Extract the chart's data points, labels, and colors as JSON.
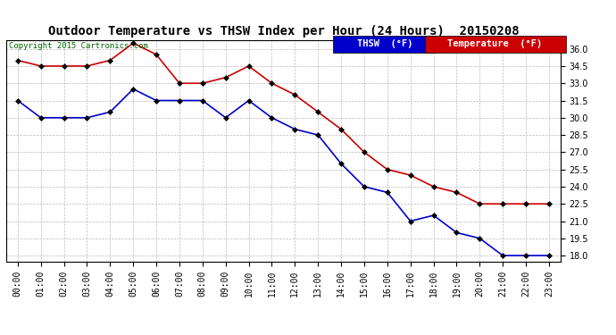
{
  "title": "Outdoor Temperature vs THSW Index per Hour (24 Hours)  20150208",
  "copyright": "Copyright 2015 Cartronics.com",
  "hours": [
    "00:00",
    "01:00",
    "02:00",
    "03:00",
    "04:00",
    "05:00",
    "06:00",
    "07:00",
    "08:00",
    "09:00",
    "10:00",
    "11:00",
    "12:00",
    "13:00",
    "14:00",
    "15:00",
    "16:00",
    "17:00",
    "18:00",
    "19:00",
    "20:00",
    "21:00",
    "22:00",
    "23:00"
  ],
  "temperature": [
    35.0,
    34.5,
    34.5,
    34.5,
    35.0,
    36.5,
    35.5,
    33.0,
    33.0,
    33.5,
    34.5,
    33.0,
    32.0,
    30.5,
    29.0,
    27.0,
    25.5,
    25.0,
    24.0,
    23.5,
    22.5,
    22.5,
    22.5,
    22.5
  ],
  "thsw": [
    31.5,
    30.0,
    30.0,
    30.0,
    30.5,
    32.5,
    31.5,
    31.5,
    31.5,
    30.0,
    31.5,
    30.0,
    29.0,
    28.5,
    26.0,
    24.0,
    23.5,
    21.0,
    21.5,
    20.0,
    19.5,
    18.0,
    18.0,
    18.0
  ],
  "temp_color": "#cc0000",
  "thsw_color": "#0000cc",
  "bg_color": "#ffffff",
  "plot_bg_color": "#ffffff",
  "grid_color": "#bbbbbb",
  "ylim_min": 17.5,
  "ylim_max": 36.75,
  "yticks": [
    18.0,
    19.5,
    21.0,
    22.5,
    24.0,
    25.5,
    27.0,
    28.5,
    30.0,
    31.5,
    33.0,
    34.5,
    36.0
  ],
  "marker": "D",
  "markersize": 3,
  "linewidth": 1.2,
  "title_fontsize": 10,
  "legend_fontsize": 7.5,
  "tick_fontsize": 7,
  "copyright_fontsize": 6.5,
  "thsw_legend_bg": "#0000cc",
  "temp_legend_bg": "#cc0000",
  "legend_text_color": "#ffffff"
}
